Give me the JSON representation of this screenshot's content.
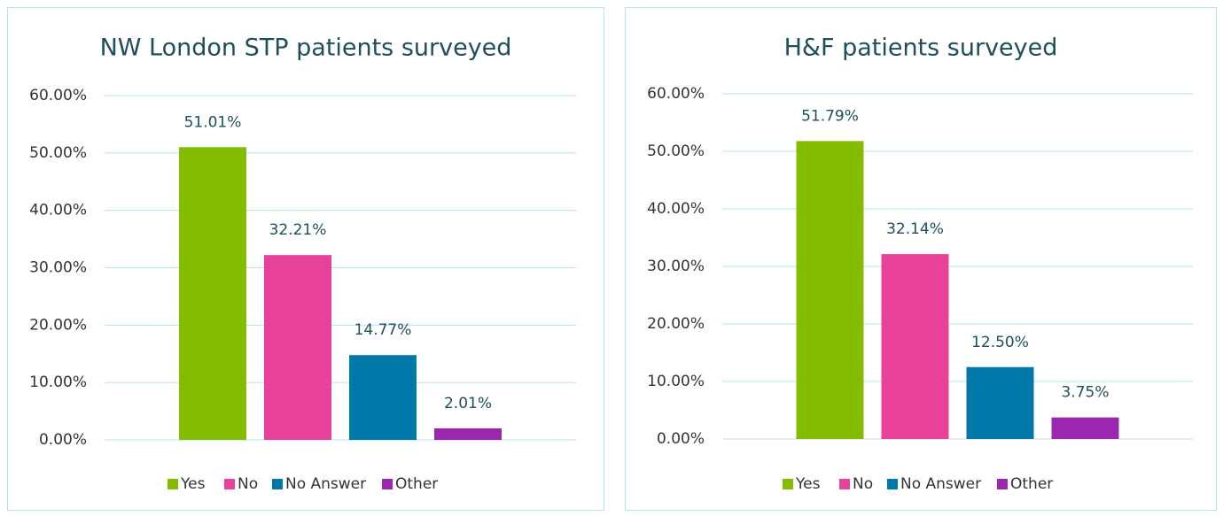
{
  "chart_data": [
    {
      "type": "bar",
      "title": "NW London STP patients surveyed",
      "categories": [
        "Yes",
        "No",
        "No Answer",
        "Other"
      ],
      "values": [
        51.01,
        32.21,
        14.77,
        2.01
      ],
      "value_labels": [
        "51.01%",
        "32.21%",
        "14.77%",
        "2.01%"
      ],
      "colors": [
        "#84bd00",
        "#e8419a",
        "#0079a8",
        "#9b27b0"
      ],
      "ylim": [
        0,
        60
      ],
      "yticks": [
        {
          "value": 0,
          "label": "0.00%"
        },
        {
          "value": 10,
          "label": "10.00%"
        },
        {
          "value": 20,
          "label": "20.00%"
        },
        {
          "value": 30,
          "label": "30.00%"
        },
        {
          "value": 40,
          "label": "40.00%"
        },
        {
          "value": 50,
          "label": "50.00%"
        },
        {
          "value": 60,
          "label": "60.00%"
        }
      ],
      "grid": true,
      "legend": "bottom"
    },
    {
      "type": "bar",
      "title": "H&F patients surveyed",
      "categories": [
        "Yes",
        "No",
        "No Answer",
        "Other"
      ],
      "values": [
        51.79,
        32.14,
        12.5,
        3.75
      ],
      "value_labels": [
        "51.79%",
        "32.14%",
        "12.50%",
        "3.75%"
      ],
      "colors": [
        "#84bd00",
        "#e8419a",
        "#0079a8",
        "#9b27b0"
      ],
      "ylim": [
        0,
        60
      ],
      "yticks": [
        {
          "value": 0,
          "label": "0.00%"
        },
        {
          "value": 10,
          "label": "10.00%"
        },
        {
          "value": 20,
          "label": "20.00%"
        },
        {
          "value": 30,
          "label": "30.00%"
        },
        {
          "value": 40,
          "label": "40.00%"
        },
        {
          "value": 50,
          "label": "50.00%"
        },
        {
          "value": 60,
          "label": "60.00%"
        }
      ],
      "grid": true,
      "legend": "bottom"
    }
  ]
}
